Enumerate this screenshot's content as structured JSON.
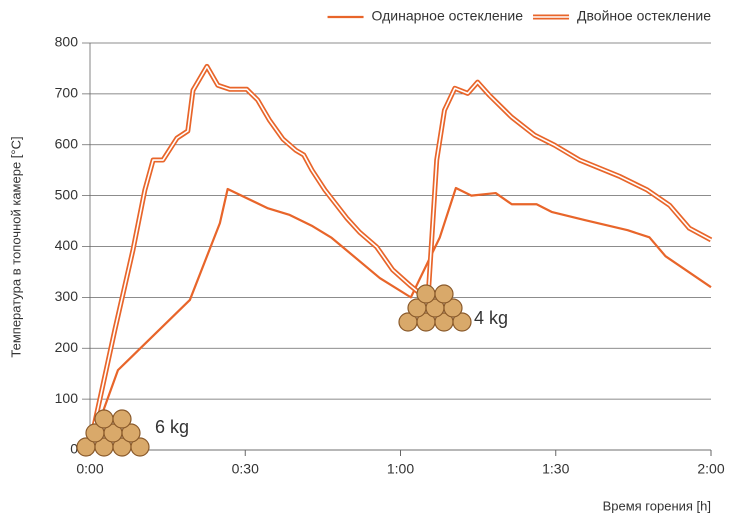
{
  "chart_data": {
    "type": "line",
    "y_label": "Температура в топочной камере [°C]",
    "x_label": "Время горения [h]",
    "xlim": [
      0,
      120
    ],
    "xticks": [
      {
        "value": 0,
        "label": "0:00"
      },
      {
        "value": 30,
        "label": "0:30"
      },
      {
        "value": 60,
        "label": "1:00"
      },
      {
        "value": 90,
        "label": "1:30"
      },
      {
        "value": 120,
        "label": "2:00"
      }
    ],
    "ylim": [
      0,
      800
    ],
    "yticks": [
      0,
      100,
      200,
      300,
      400,
      500,
      600,
      700,
      800
    ],
    "grid": true,
    "legend": "top-right",
    "annotations": [
      "6 kg",
      "4 kg"
    ],
    "series": [
      {
        "name": "Одинарное остекление",
        "color": "#e8652a",
        "line_style": "single",
        "x": [
          0,
          5.4,
          19.3,
          25.1,
          26.6,
          34.4,
          38.6,
          43,
          46.7,
          56,
          62,
          67.6,
          70.7,
          73.7,
          78.4,
          81.5,
          86.3,
          89.2,
          95.6,
          103.9,
          108.1,
          111.2,
          120
        ],
        "values": [
          5,
          157,
          295,
          446,
          513,
          475,
          462,
          440,
          417,
          338,
          300,
          418,
          515,
          500,
          505,
          483,
          483,
          468,
          452,
          432,
          418,
          381,
          320
        ]
      },
      {
        "name": "Двойное остекление",
        "color": "#e8652a",
        "line_style": "double",
        "x": [
          0,
          4.8,
          8.3,
          10.6,
          12.2,
          14.1,
          16.8,
          18.9,
          19.9,
          22.6,
          24.7,
          27,
          30.3,
          32.4,
          34.7,
          37.3,
          39.8,
          41.3,
          42.9,
          45.4,
          49.6,
          52.1,
          55.4,
          58.5,
          61.8,
          65.3,
          67,
          68.5,
          70.5,
          73,
          74.9,
          77.2,
          81.5,
          85.9,
          89.8,
          94.6,
          102.3,
          107.7,
          112,
          115.8,
          120
        ],
        "values": [
          10,
          236,
          393,
          511,
          570,
          570,
          613,
          627,
          707,
          754,
          717,
          709,
          709,
          688,
          648,
          611,
          589,
          580,
          550,
          511,
          456,
          428,
          399,
          354,
          324,
          295,
          570,
          668,
          711,
          701,
          723,
          697,
          654,
          619,
          599,
          570,
          538,
          511,
          481,
          436,
          413
        ]
      }
    ]
  }
}
